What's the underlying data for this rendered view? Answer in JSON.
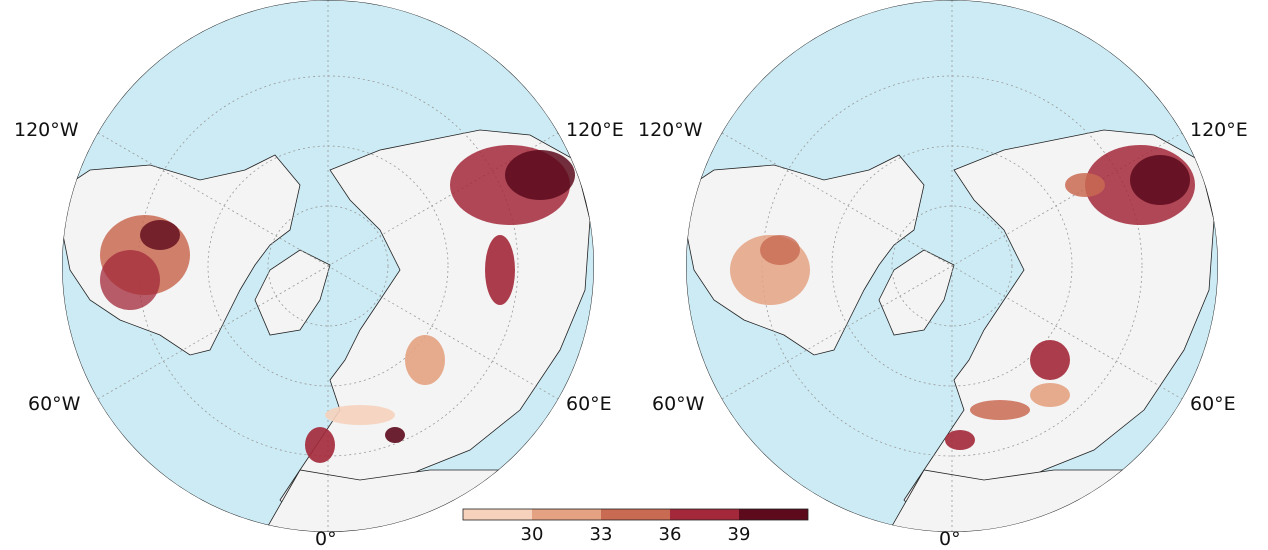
{
  "maps": [
    {
      "lon_labels": {
        "top_left": "120°W",
        "top_right": "120°E",
        "bottom_left": "60°W",
        "bottom_right": "60°E",
        "bottom": "0°"
      }
    },
    {
      "lon_labels": {
        "top_left": "120°W",
        "top_right": "120°E",
        "bottom_left": "60°W",
        "bottom_right": "60°E",
        "bottom": "0°"
      }
    }
  ],
  "colorbar": {
    "ticks": [
      "30",
      "33",
      "36",
      "39"
    ],
    "colors": [
      "#f6d2bd",
      "#e4a282",
      "#c96a52",
      "#a3283a",
      "#5c0a1c"
    ]
  },
  "colors": {
    "ocean": "#cdebf5",
    "land": "#f4f4f4",
    "border": "#222222"
  }
}
